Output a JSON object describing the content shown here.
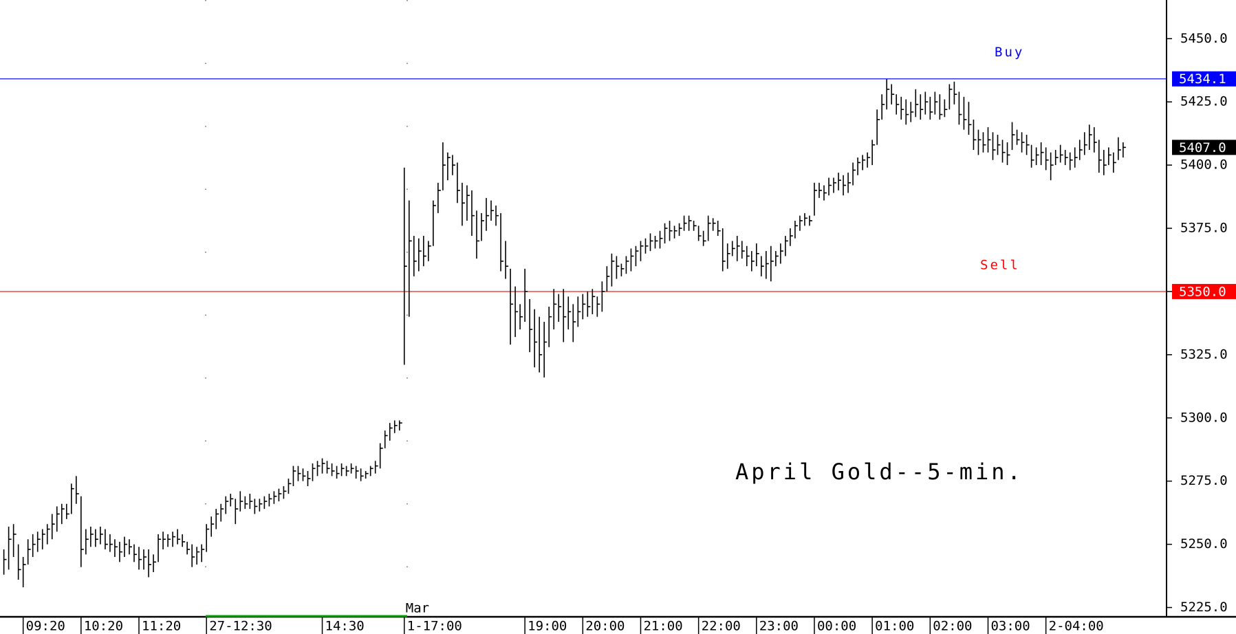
{
  "chart_data": {
    "type": "ohlc",
    "title": "April Gold--5-min.",
    "session_label": "Mar",
    "color": "#000000",
    "ylim": [
      5221.6,
      5465.3
    ],
    "yticks": [
      {
        "value": 5225,
        "label": "5225.0"
      },
      {
        "value": 5250,
        "label": "5250.0"
      },
      {
        "value": 5275,
        "label": "5275.0"
      },
      {
        "value": 5300,
        "label": "5300.0"
      },
      {
        "value": 5325,
        "label": "5325.0"
      },
      {
        "value": 5350,
        "label": "5350.0"
      },
      {
        "value": 5375,
        "label": "5375.0"
      },
      {
        "value": 5400,
        "label": "5400.0"
      },
      {
        "value": 5425,
        "label": "5425.0"
      },
      {
        "value": 5450,
        "label": "5450.0"
      }
    ],
    "xlim": [
      -0.8,
      241
    ],
    "xticks": [
      {
        "value": 4,
        "label": "09:20"
      },
      {
        "value": 16,
        "label": "10:20"
      },
      {
        "value": 28,
        "label": "11:20"
      },
      {
        "value": 42,
        "label": "27-12:30"
      },
      {
        "value": 66,
        "label": "14:30"
      },
      {
        "value": 83,
        "label": "1-17:00"
      },
      {
        "value": 108,
        "label": "19:00"
      },
      {
        "value": 120,
        "label": "20:00"
      },
      {
        "value": 132,
        "label": "21:00"
      },
      {
        "value": 144,
        "label": "22:00"
      },
      {
        "value": 156,
        "label": "23:00"
      },
      {
        "value": 168,
        "label": "00:00"
      },
      {
        "value": 180,
        "label": "01:00"
      },
      {
        "value": 192,
        "label": "02:00"
      },
      {
        "value": 204,
        "label": "03:00"
      },
      {
        "value": 216,
        "label": "2-04:00"
      }
    ],
    "levels": [
      {
        "name": "Buy",
        "value": 5434.1,
        "label": "5434.1",
        "color": "#0000ff"
      },
      {
        "name": "Sell",
        "value": 5350,
        "label": "5350.0",
        "color": "#ff0000"
      }
    ],
    "last_price": {
      "value": 5407,
      "label": "5407.0"
    },
    "high": [
      5248,
      5257,
      5258,
      5250,
      5245,
      5252,
      5254,
      5255,
      5256,
      5258,
      5262,
      5265,
      5266,
      5266,
      5274,
      5277,
      5269,
      5256,
      5257,
      5256,
      5257,
      5256,
      5254,
      5252,
      5251,
      5253,
      5252,
      5250,
      5249,
      5248,
      5248,
      5246,
      5254,
      5255,
      5254,
      5255,
      5256,
      5254,
      5251,
      5250,
      5249,
      5250,
      5258,
      5261,
      5264,
      5266,
      5269,
      5270,
      5268,
      5271,
      5269,
      5270,
      5268,
      5268,
      5269,
      5270,
      5271,
      5272,
      5273,
      5276,
      5281,
      5281,
      5280,
      5279,
      5282,
      5283,
      5284,
      5283,
      5282,
      5281,
      5282,
      5281,
      5282,
      5281,
      5280,
      5279,
      5281,
      5283,
      5290,
      5295,
      5298,
      5299,
      5299,
      5399,
      5386,
      5372,
      5371,
      5372,
      5370,
      5386,
      5393,
      5409,
      5405,
      5404,
      5401,
      5393,
      5392,
      5390,
      5382,
      5381,
      5387,
      5386,
      5384,
      5381,
      5370,
      5359,
      5352,
      5345,
      5359,
      5347,
      5343,
      5340,
      5338,
      5344,
      5351,
      5349,
      5351,
      5348,
      5345,
      5348,
      5349,
      5350,
      5351,
      5348,
      5354,
      5360,
      5365,
      5364,
      5361,
      5364,
      5367,
      5368,
      5370,
      5371,
      5373,
      5372,
      5374,
      5377,
      5378,
      5376,
      5377,
      5380,
      5380,
      5378,
      5376,
      5374,
      5380,
      5379,
      5378,
      5375,
      5369,
      5370,
      5372,
      5370,
      5368,
      5366,
      5369,
      5364,
      5366,
      5368,
      5366,
      5369,
      5372,
      5375,
      5378,
      5380,
      5381,
      5380,
      5393,
      5393,
      5392,
      5395,
      5395,
      5397,
      5396,
      5397,
      5401,
      5403,
      5404,
      5405,
      5410,
      5422,
      5428,
      5434,
      5432,
      5428,
      5427,
      5426,
      5425,
      5430,
      5428,
      5429,
      5427,
      5429,
      5428,
      5426,
      5432,
      5433,
      5429,
      5427,
      5425,
      5418,
      5414,
      5413,
      5415,
      5413,
      5412,
      5410,
      5409,
      5417,
      5414,
      5413,
      5412,
      5408,
      5407,
      5409,
      5407,
      5405,
      5406,
      5408,
      5406,
      5405,
      5407,
      5410,
      5413,
      5416,
      5415,
      5410,
      5406,
      5407,
      5405,
      5411,
      5409
    ],
    "low": [
      5238,
      5240,
      5245,
      5236,
      5233,
      5242,
      5245,
      5247,
      5248,
      5250,
      5252,
      5255,
      5258,
      5260,
      5262,
      5266,
      5241,
      5246,
      5249,
      5249,
      5250,
      5248,
      5247,
      5245,
      5243,
      5245,
      5246,
      5243,
      5240,
      5240,
      5237,
      5239,
      5243,
      5248,
      5249,
      5249,
      5250,
      5249,
      5246,
      5241,
      5242,
      5243,
      5247,
      5253,
      5256,
      5259,
      5262,
      5265,
      5258,
      5263,
      5264,
      5264,
      5262,
      5263,
      5264,
      5265,
      5266,
      5267,
      5268,
      5270,
      5273,
      5275,
      5275,
      5273,
      5275,
      5277,
      5278,
      5278,
      5277,
      5276,
      5277,
      5277,
      5278,
      5276,
      5275,
      5276,
      5277,
      5278,
      5280,
      5288,
      5291,
      5294,
      5295,
      5321,
      5340,
      5356,
      5358,
      5360,
      5362,
      5368,
      5381,
      5390,
      5394,
      5396,
      5385,
      5376,
      5378,
      5372,
      5363,
      5370,
      5374,
      5378,
      5376,
      5358,
      5355,
      5329,
      5332,
      5335,
      5338,
      5326,
      5320,
      5318,
      5316,
      5328,
      5335,
      5338,
      5330,
      5335,
      5330,
      5336,
      5339,
      5340,
      5341,
      5340,
      5342,
      5350,
      5352,
      5355,
      5356,
      5357,
      5358,
      5360,
      5362,
      5365,
      5366,
      5367,
      5367,
      5369,
      5370,
      5371,
      5372,
      5374,
      5374,
      5374,
      5370,
      5368,
      5370,
      5374,
      5372,
      5358,
      5359,
      5364,
      5362,
      5363,
      5360,
      5358,
      5360,
      5356,
      5355,
      5354,
      5360,
      5361,
      5364,
      5368,
      5371,
      5374,
      5376,
      5376,
      5380,
      5387,
      5386,
      5388,
      5389,
      5390,
      5388,
      5389,
      5392,
      5396,
      5398,
      5399,
      5400,
      5408,
      5418,
      5422,
      5424,
      5420,
      5418,
      5416,
      5417,
      5419,
      5418,
      5420,
      5418,
      5420,
      5418,
      5419,
      5422,
      5424,
      5416,
      5414,
      5412,
      5406,
      5404,
      5405,
      5405,
      5402,
      5404,
      5401,
      5400,
      5406,
      5408,
      5405,
      5404,
      5399,
      5400,
      5400,
      5398,
      5394,
      5400,
      5401,
      5400,
      5398,
      5399,
      5402,
      5404,
      5406,
      5405,
      5397,
      5396,
      5400,
      5397,
      5402,
      5403
    ],
    "close": [
      5244,
      5252,
      5254,
      5240,
      5242,
      5248,
      5250,
      5252,
      5254,
      5256,
      5258,
      5262,
      5264,
      5262,
      5272,
      5270,
      5248,
      5252,
      5254,
      5252,
      5254,
      5250,
      5250,
      5249,
      5247,
      5250,
      5249,
      5246,
      5244,
      5245,
      5242,
      5243,
      5252,
      5252,
      5252,
      5253,
      5252,
      5251,
      5248,
      5245,
      5247,
      5248,
      5256,
      5258,
      5262,
      5264,
      5267,
      5268,
      5264,
      5267,
      5266,
      5267,
      5265,
      5266,
      5267,
      5268,
      5269,
      5270,
      5271,
      5274,
      5279,
      5278,
      5277,
      5276,
      5280,
      5281,
      5282,
      5280,
      5279,
      5278,
      5280,
      5279,
      5280,
      5279,
      5277,
      5278,
      5280,
      5281,
      5288,
      5293,
      5296,
      5297,
      5298,
      5360,
      5370,
      5362,
      5366,
      5364,
      5368,
      5384,
      5390,
      5400,
      5403,
      5400,
      5390,
      5385,
      5388,
      5380,
      5370,
      5378,
      5380,
      5382,
      5380,
      5362,
      5360,
      5345,
      5342,
      5340,
      5350,
      5335,
      5330,
      5325,
      5330,
      5340,
      5345,
      5344,
      5340,
      5342,
      5338,
      5342,
      5345,
      5344,
      5348,
      5345,
      5350,
      5356,
      5362,
      5360,
      5359,
      5362,
      5364,
      5366,
      5368,
      5368,
      5370,
      5370,
      5371,
      5375,
      5374,
      5374,
      5375,
      5377,
      5378,
      5376,
      5372,
      5370,
      5377,
      5377,
      5374,
      5362,
      5365,
      5367,
      5368,
      5366,
      5364,
      5362,
      5365,
      5360,
      5361,
      5362,
      5364,
      5366,
      5370,
      5372,
      5376,
      5378,
      5379,
      5378,
      5390,
      5390,
      5389,
      5392,
      5393,
      5394,
      5392,
      5393,
      5398,
      5401,
      5402,
      5403,
      5408,
      5418,
      5424,
      5430,
      5428,
      5424,
      5422,
      5420,
      5421,
      5424,
      5422,
      5425,
      5421,
      5425,
      5420,
      5422,
      5430,
      5428,
      5420,
      5418,
      5416,
      5410,
      5410,
      5408,
      5410,
      5406,
      5408,
      5405,
      5404,
      5412,
      5410,
      5409,
      5408,
      5402,
      5404,
      5405,
      5402,
      5400,
      5403,
      5404,
      5403,
      5402,
      5403,
      5406,
      5408,
      5412,
      5409,
      5402,
      5400,
      5404,
      5401,
      5406,
      5407
    ]
  }
}
